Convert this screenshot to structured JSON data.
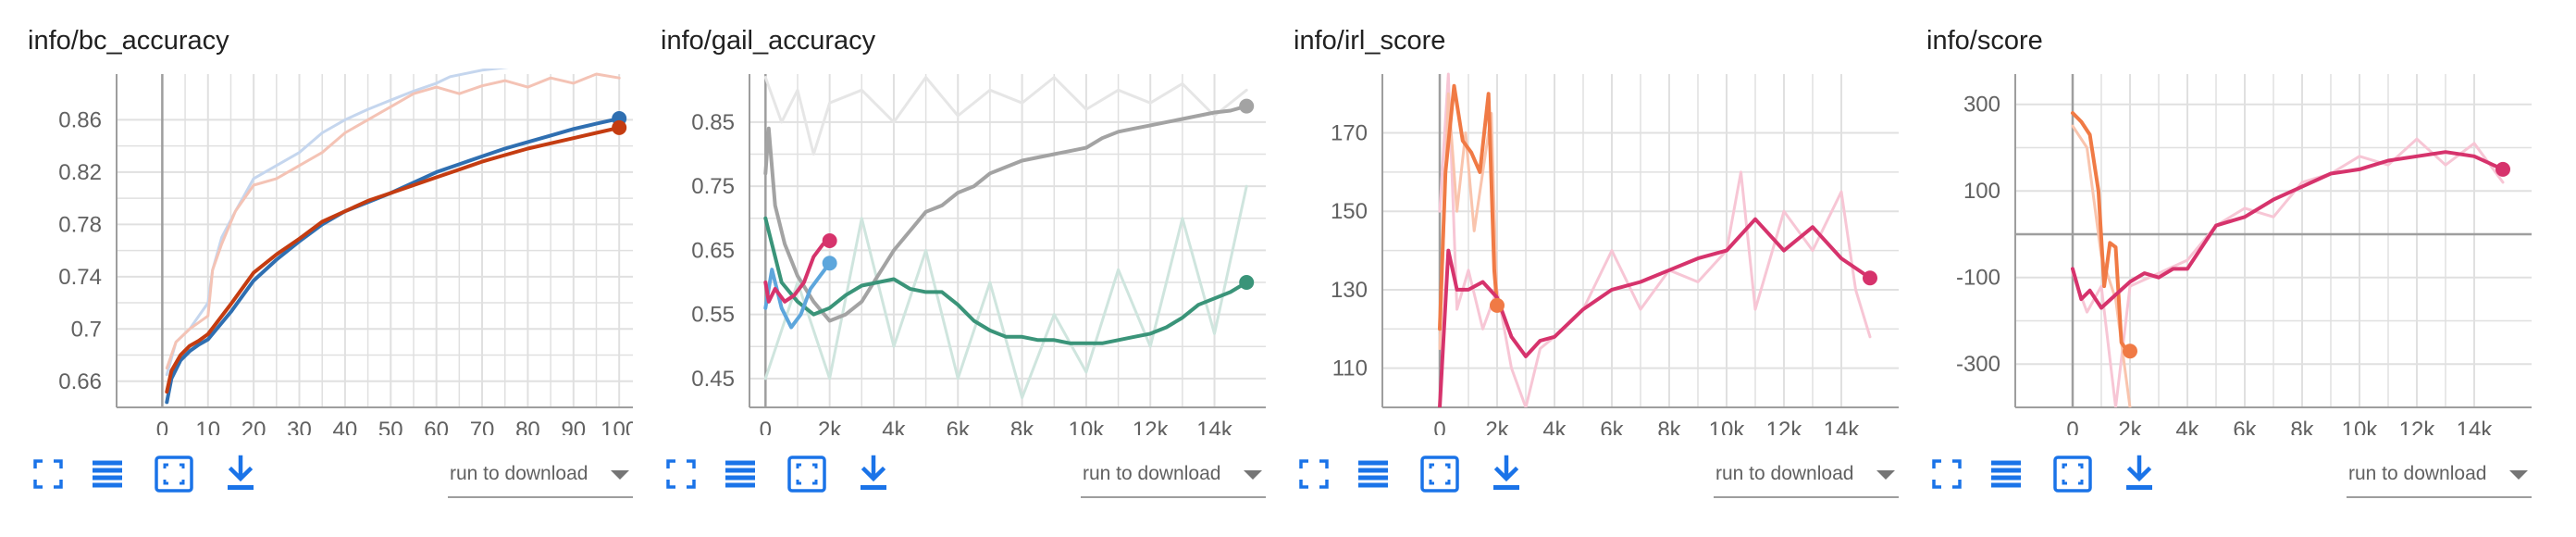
{
  "colors": {
    "blue": "#2f6fb1",
    "red": "#c43c11",
    "light_blue": "#c5d6ee",
    "light_red": "#f4c3b5",
    "pink": "#d6336c",
    "light_pink": "#f7c6d5",
    "orange": "#f07a45",
    "light_orange": "#f9c4ad",
    "gray": "#a3a3a3",
    "light_gray": "#e6e6e6",
    "teal": "#3a9479",
    "light_teal": "#cfe5de",
    "sky": "#5da6dc",
    "light_sky": "#cce3f3",
    "icon": "#1a73e8",
    "grid": "#e0e0e0",
    "axis": "#9e9e9e"
  },
  "toolbar": {
    "download_label": "run to download",
    "icons": [
      "fullscreen-icon",
      "data-table-icon",
      "fit-domain-icon",
      "download-icon"
    ]
  },
  "chart_data": [
    {
      "type": "line",
      "title": "info/bc_accuracy",
      "xlim": [
        -10,
        103
      ],
      "ylim": [
        0.64,
        0.895
      ],
      "x_ticks": [
        0,
        10,
        20,
        30,
        40,
        50,
        60,
        70,
        80,
        90,
        100
      ],
      "x_tick_labels": [
        "0",
        "10",
        "20",
        "30",
        "40",
        "50",
        "60",
        "70",
        "80",
        "90",
        "100"
      ],
      "y_ticks": [
        0.66,
        0.7,
        0.74,
        0.78,
        0.82,
        0.86
      ],
      "y_tick_labels": [
        "0.66",
        "0.7",
        "0.74",
        "0.78",
        "0.82",
        "0.86"
      ],
      "zero_line_x": 0,
      "series": [
        {
          "role": "raw",
          "color_key": "light_blue",
          "x": [
            1,
            3,
            6,
            10,
            11,
            13,
            16,
            20,
            25,
            30,
            35,
            40,
            45,
            50,
            55,
            60,
            63,
            70,
            80
          ],
          "y": [
            0.665,
            0.69,
            0.7,
            0.72,
            0.745,
            0.77,
            0.79,
            0.815,
            0.825,
            0.835,
            0.85,
            0.86,
            0.868,
            0.875,
            0.882,
            0.888,
            0.893,
            0.898,
            0.902
          ]
        },
        {
          "role": "raw",
          "color_key": "light_red",
          "x": [
            1,
            3,
            6,
            10,
            11,
            13,
            16,
            20,
            25,
            30,
            35,
            40,
            45,
            50,
            55,
            60,
            65,
            70,
            75,
            80,
            85,
            90,
            95,
            100
          ],
          "y": [
            0.67,
            0.69,
            0.7,
            0.71,
            0.745,
            0.765,
            0.79,
            0.81,
            0.815,
            0.825,
            0.835,
            0.85,
            0.86,
            0.87,
            0.88,
            0.885,
            0.88,
            0.886,
            0.89,
            0.885,
            0.892,
            0.888,
            0.895,
            0.892
          ]
        },
        {
          "role": "smoothed",
          "color_key": "blue",
          "x": [
            1,
            2,
            4,
            6,
            8,
            10,
            15,
            20,
            25,
            30,
            35,
            40,
            45,
            50,
            55,
            60,
            65,
            70,
            75,
            80,
            85,
            90,
            95,
            100
          ],
          "y": [
            0.644,
            0.662,
            0.676,
            0.683,
            0.688,
            0.692,
            0.713,
            0.737,
            0.753,
            0.767,
            0.78,
            0.79,
            0.797,
            0.804,
            0.812,
            0.82,
            0.826,
            0.832,
            0.838,
            0.843,
            0.848,
            0.853,
            0.857,
            0.861
          ]
        },
        {
          "role": "smoothed",
          "color_key": "red",
          "x": [
            1,
            2,
            4,
            6,
            8,
            10,
            15,
            20,
            25,
            30,
            35,
            40,
            45,
            50,
            55,
            60,
            65,
            70,
            75,
            80,
            85,
            90,
            95,
            100
          ],
          "y": [
            0.652,
            0.668,
            0.68,
            0.687,
            0.691,
            0.696,
            0.719,
            0.743,
            0.757,
            0.769,
            0.782,
            0.79,
            0.798,
            0.804,
            0.81,
            0.816,
            0.822,
            0.828,
            0.833,
            0.838,
            0.842,
            0.846,
            0.85,
            0.854
          ]
        }
      ]
    },
    {
      "type": "line",
      "title": "info/gail_accuracy",
      "xlim": [
        -500,
        15600
      ],
      "ylim": [
        0.405,
        0.925
      ],
      "x_ticks": [
        0,
        2000,
        4000,
        6000,
        8000,
        10000,
        12000,
        14000
      ],
      "x_tick_labels": [
        "0",
        "2k",
        "4k",
        "6k",
        "8k",
        "10k",
        "12k",
        "14k"
      ],
      "y_ticks": [
        0.45,
        0.55,
        0.65,
        0.75,
        0.85
      ],
      "y_tick_labels": [
        "0.45",
        "0.55",
        "0.65",
        "0.75",
        "0.85"
      ],
      "zero_line_x": 0,
      "series": [
        {
          "role": "raw",
          "color_key": "light_gray",
          "x": [
            0,
            500,
            1000,
            1500,
            2000,
            3000,
            4000,
            5000,
            6000,
            7000,
            8000,
            9000,
            10000,
            11000,
            12000,
            13000,
            14000,
            15000
          ],
          "y": [
            0.92,
            0.85,
            0.9,
            0.8,
            0.88,
            0.9,
            0.85,
            0.92,
            0.86,
            0.9,
            0.88,
            0.92,
            0.87,
            0.9,
            0.88,
            0.91,
            0.86,
            0.9
          ]
        },
        {
          "role": "raw",
          "color_key": "light_teal",
          "x": [
            0,
            1000,
            2000,
            3000,
            4000,
            5000,
            6000,
            7000,
            8000,
            9000,
            10000,
            11000,
            12000,
            13000,
            14000,
            15000
          ],
          "y": [
            0.45,
            0.6,
            0.45,
            0.7,
            0.5,
            0.65,
            0.45,
            0.6,
            0.42,
            0.55,
            0.46,
            0.62,
            0.5,
            0.7,
            0.52,
            0.75
          ]
        },
        {
          "role": "smoothed",
          "color_key": "gray",
          "x": [
            0,
            100,
            300,
            600,
            1000,
            1500,
            2000,
            2500,
            3000,
            3500,
            4000,
            4500,
            5000,
            5500,
            6000,
            6500,
            7000,
            7500,
            8000,
            8500,
            9000,
            9500,
            10000,
            10500,
            11000,
            11500,
            12000,
            12500,
            13000,
            13500,
            14000,
            14500,
            15000
          ],
          "y": [
            0.77,
            0.84,
            0.72,
            0.66,
            0.61,
            0.57,
            0.54,
            0.55,
            0.57,
            0.61,
            0.65,
            0.68,
            0.71,
            0.72,
            0.74,
            0.75,
            0.77,
            0.78,
            0.79,
            0.795,
            0.8,
            0.805,
            0.81,
            0.825,
            0.835,
            0.84,
            0.845,
            0.85,
            0.855,
            0.86,
            0.865,
            0.868,
            0.875
          ]
        },
        {
          "role": "smoothed",
          "color_key": "teal",
          "x": [
            0,
            500,
            1000,
            1500,
            2000,
            2500,
            3000,
            3500,
            4000,
            4500,
            5000,
            5500,
            6000,
            6500,
            7000,
            7500,
            8000,
            8500,
            9000,
            9500,
            10000,
            10500,
            11000,
            11500,
            12000,
            12500,
            13000,
            13500,
            14000,
            14500,
            15000
          ],
          "y": [
            0.7,
            0.6,
            0.57,
            0.55,
            0.56,
            0.58,
            0.595,
            0.6,
            0.605,
            0.59,
            0.585,
            0.585,
            0.565,
            0.54,
            0.525,
            0.515,
            0.515,
            0.51,
            0.51,
            0.505,
            0.505,
            0.505,
            0.51,
            0.515,
            0.52,
            0.53,
            0.545,
            0.565,
            0.575,
            0.585,
            0.6
          ]
        },
        {
          "role": "smoothed",
          "color_key": "sky",
          "x": [
            0,
            200,
            500,
            800,
            1100,
            1400,
            1700,
            2000
          ],
          "y": [
            0.56,
            0.62,
            0.56,
            0.53,
            0.55,
            0.59,
            0.61,
            0.63
          ]
        },
        {
          "role": "smoothed",
          "color_key": "pink",
          "x": [
            0,
            100,
            300,
            600,
            900,
            1200,
            1500,
            1800,
            2000
          ],
          "y": [
            0.6,
            0.57,
            0.59,
            0.57,
            0.58,
            0.6,
            0.64,
            0.66,
            0.665
          ]
        }
      ]
    },
    {
      "type": "line",
      "title": "info/irl_score",
      "xlim": [
        -2000,
        16000
      ],
      "ylim": [
        100,
        185
      ],
      "x_ticks": [
        0,
        2000,
        4000,
        6000,
        8000,
        10000,
        12000,
        14000
      ],
      "x_tick_labels": [
        "0",
        "2k",
        "4k",
        "6k",
        "8k",
        "10k",
        "12k",
        "14k"
      ],
      "y_ticks": [
        110,
        130,
        150,
        170
      ],
      "y_tick_labels": [
        "110",
        "130",
        "150",
        "170"
      ],
      "zero_line_x": 0,
      "series": [
        {
          "role": "raw",
          "color_key": "light_pink",
          "x": [
            0,
            300,
            600,
            1000,
            1500,
            2000,
            2500,
            3000,
            3500,
            4000,
            5000,
            6000,
            7000,
            8000,
            9000,
            10000,
            10500,
            11000,
            12000,
            13000,
            14000,
            14500,
            15000
          ],
          "y": [
            150,
            185,
            125,
            135,
            120,
            130,
            110,
            100,
            115,
            118,
            125,
            140,
            125,
            135,
            132,
            140,
            160,
            125,
            150,
            140,
            155,
            130,
            118
          ]
        },
        {
          "role": "raw",
          "color_key": "light_orange",
          "x": [
            0,
            300,
            600,
            900,
            1200,
            1500,
            1800,
            2000
          ],
          "y": [
            115,
            180,
            150,
            170,
            145,
            160,
            175,
            125
          ]
        },
        {
          "role": "smoothed",
          "color_key": "orange",
          "x": [
            0,
            200,
            500,
            800,
            1100,
            1400,
            1700,
            1900,
            2000
          ],
          "y": [
            120,
            160,
            182,
            168,
            165,
            160,
            180,
            135,
            126
          ]
        },
        {
          "role": "smoothed",
          "color_key": "pink",
          "x": [
            0,
            300,
            600,
            1000,
            1500,
            2000,
            2500,
            3000,
            3500,
            4000,
            5000,
            6000,
            7000,
            8000,
            9000,
            10000,
            11000,
            12000,
            13000,
            14000,
            15000
          ],
          "y": [
            100,
            140,
            130,
            130,
            132,
            128,
            118,
            113,
            117,
            118,
            125,
            130,
            132,
            135,
            138,
            140,
            148,
            140,
            146,
            138,
            133
          ]
        }
      ]
    },
    {
      "type": "line",
      "title": "info/score",
      "xlim": [
        -2000,
        16000
      ],
      "ylim": [
        -400,
        370
      ],
      "x_ticks": [
        0,
        2000,
        4000,
        6000,
        8000,
        10000,
        12000,
        14000
      ],
      "x_tick_labels": [
        "0",
        "2k",
        "4k",
        "6k",
        "8k",
        "10k",
        "12k",
        "14k"
      ],
      "y_ticks": [
        -300,
        -100,
        100,
        300
      ],
      "y_tick_labels": [
        "-300",
        "-100",
        "100",
        "300"
      ],
      "zero_line_x": 0,
      "zero_line_y": 0,
      "series": [
        {
          "role": "raw",
          "color_key": "light_pink",
          "x": [
            0,
            500,
            1000,
            1500,
            2000,
            3000,
            4000,
            5000,
            6000,
            7000,
            8000,
            9000,
            10000,
            11000,
            12000,
            13000,
            14000,
            15000
          ],
          "y": [
            -90,
            -180,
            -120,
            -400,
            -120,
            -90,
            -60,
            20,
            60,
            40,
            120,
            140,
            180,
            160,
            220,
            160,
            210,
            120
          ]
        },
        {
          "role": "raw",
          "color_key": "light_orange",
          "x": [
            0,
            500,
            1000,
            1500,
            2000
          ],
          "y": [
            250,
            200,
            -50,
            -150,
            -400
          ]
        },
        {
          "role": "smoothed",
          "color_key": "orange",
          "x": [
            0,
            300,
            600,
            900,
            1100,
            1300,
            1500,
            1700,
            1900,
            2000
          ],
          "y": [
            280,
            260,
            230,
            100,
            -120,
            -20,
            -30,
            -250,
            -270,
            -270
          ]
        },
        {
          "role": "smoothed",
          "color_key": "pink",
          "x": [
            0,
            300,
            600,
            1000,
            1500,
            2000,
            2500,
            3000,
            3500,
            4000,
            5000,
            6000,
            7000,
            8000,
            9000,
            10000,
            11000,
            12000,
            13000,
            14000,
            15000
          ],
          "y": [
            -80,
            -150,
            -130,
            -170,
            -140,
            -110,
            -90,
            -100,
            -80,
            -80,
            20,
            40,
            80,
            110,
            140,
            150,
            170,
            180,
            190,
            180,
            150
          ]
        }
      ]
    }
  ]
}
